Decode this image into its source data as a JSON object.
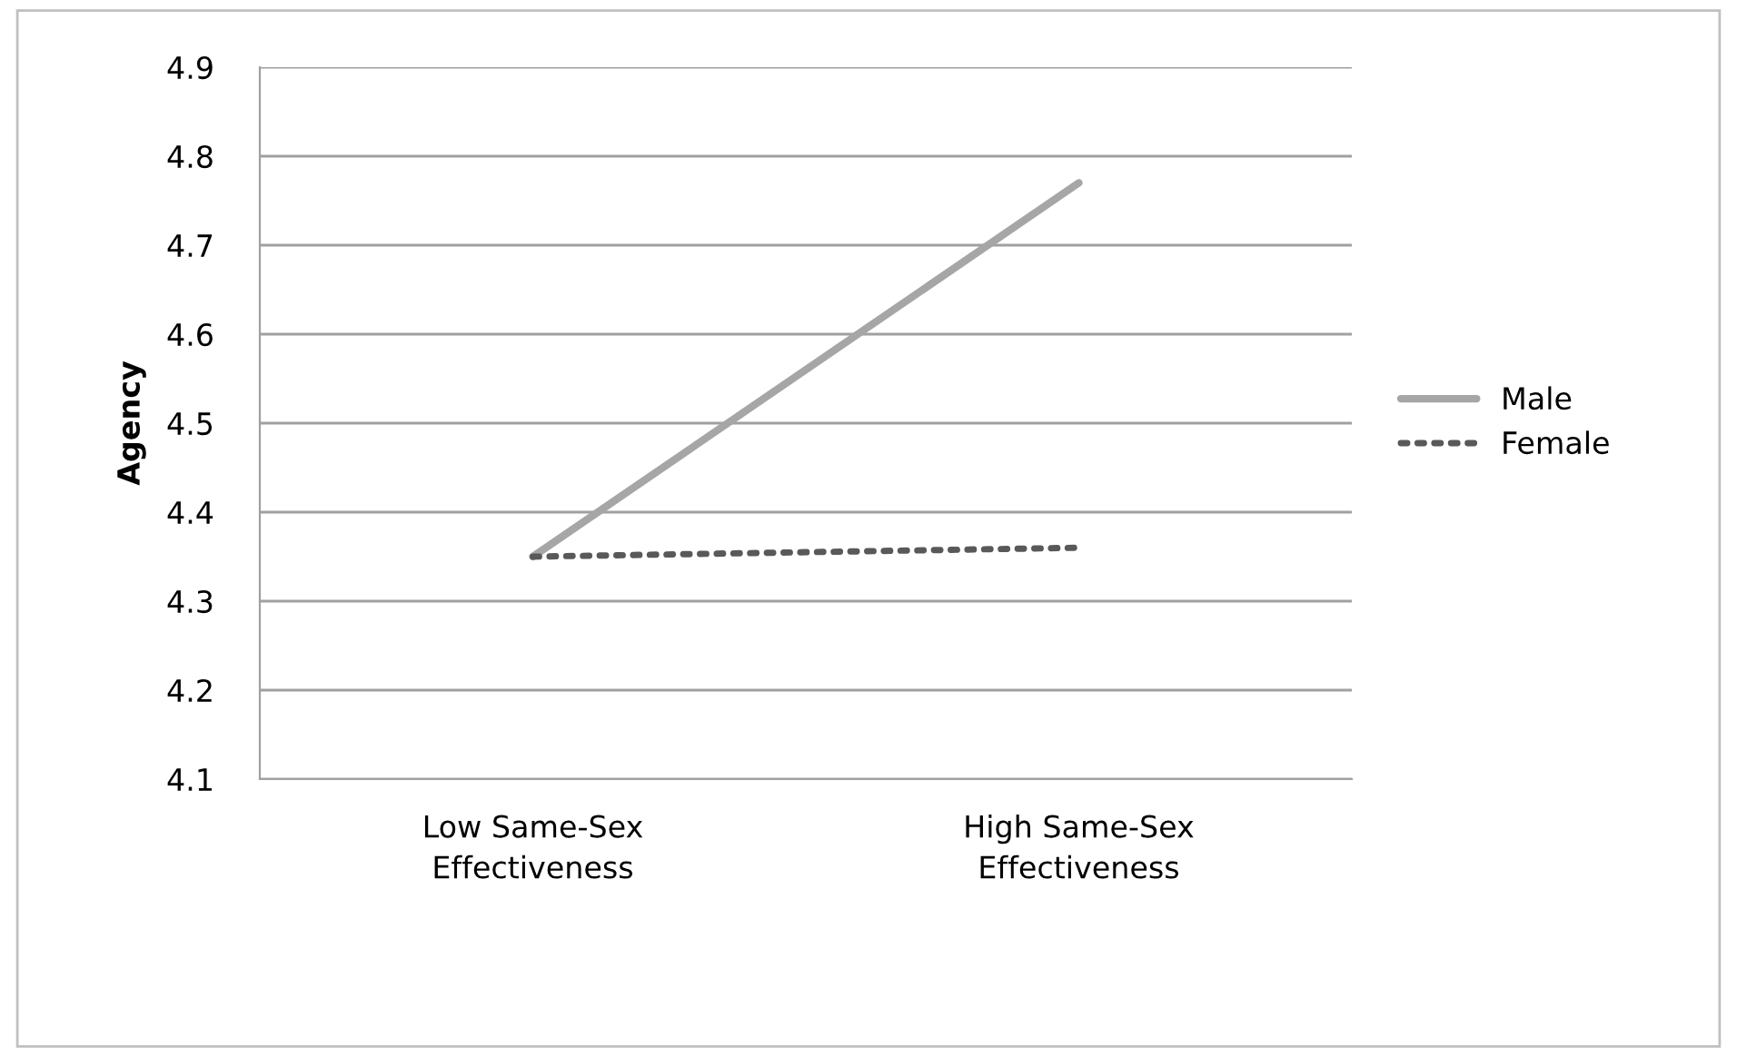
{
  "chart_data": {
    "type": "line",
    "ylabel": "Agency",
    "categories": [
      "Low Same-Sex\nEffectiveness",
      "High Same-Sex\nEffectiveness"
    ],
    "series": [
      {
        "name": "Male",
        "color": "#a6a6a6",
        "values": [
          4.35,
          4.77
        ],
        "line_style": "solid"
      },
      {
        "name": "Female",
        "color": "#595959",
        "values": [
          4.35,
          4.36
        ],
        "line_style": "dotted"
      }
    ],
    "ylim": [
      4.1,
      4.9
    ],
    "yticks": [
      4.1,
      4.2,
      4.3,
      4.4,
      4.5,
      4.6,
      4.7,
      4.8,
      4.9
    ],
    "grid": "y",
    "legend": "right",
    "marker": "none"
  }
}
